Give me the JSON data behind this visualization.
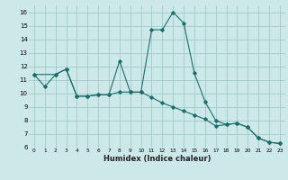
{
  "xlabel": "Humidex (Indice chaleur)",
  "background_color": "#cde8e8",
  "grid_color": "#a0c8c8",
  "line_color": "#1a6e6a",
  "xlim": [
    -0.5,
    23.5
  ],
  "ylim": [
    6,
    16.5
  ],
  "xticks": [
    0,
    1,
    2,
    3,
    4,
    5,
    6,
    7,
    8,
    9,
    10,
    11,
    12,
    13,
    14,
    15,
    16,
    17,
    18,
    19,
    20,
    21,
    22,
    23
  ],
  "yticks": [
    6,
    7,
    8,
    9,
    10,
    11,
    12,
    13,
    14,
    15,
    16
  ],
  "series1": [
    [
      0,
      11.4
    ],
    [
      1,
      10.5
    ],
    [
      2,
      11.4
    ],
    [
      3,
      11.8
    ],
    [
      4,
      9.8
    ],
    [
      5,
      9.8
    ],
    [
      6,
      9.9
    ],
    [
      7,
      9.9
    ],
    [
      8,
      12.4
    ],
    [
      9,
      10.1
    ],
    [
      10,
      10.1
    ],
    [
      11,
      14.7
    ],
    [
      12,
      14.7
    ],
    [
      13,
      16.0
    ],
    [
      14,
      15.2
    ],
    [
      15,
      11.5
    ],
    [
      16,
      9.4
    ],
    [
      17,
      8.0
    ],
    [
      18,
      7.7
    ],
    [
      19,
      7.8
    ],
    [
      20,
      7.5
    ],
    [
      21,
      6.7
    ],
    [
      22,
      6.4
    ],
    [
      23,
      6.3
    ]
  ],
  "series2": [
    [
      0,
      11.4
    ],
    [
      2,
      11.4
    ],
    [
      3,
      11.8
    ],
    [
      4,
      9.8
    ],
    [
      5,
      9.8
    ],
    [
      6,
      9.9
    ],
    [
      7,
      9.9
    ],
    [
      8,
      10.1
    ],
    [
      9,
      10.1
    ],
    [
      10,
      10.1
    ],
    [
      11,
      9.7
    ],
    [
      12,
      9.3
    ],
    [
      13,
      9.0
    ],
    [
      14,
      8.7
    ],
    [
      15,
      8.4
    ],
    [
      16,
      8.1
    ],
    [
      17,
      7.6
    ],
    [
      18,
      7.7
    ],
    [
      19,
      7.8
    ],
    [
      20,
      7.5
    ],
    [
      21,
      6.7
    ],
    [
      22,
      6.4
    ],
    [
      23,
      6.3
    ]
  ]
}
